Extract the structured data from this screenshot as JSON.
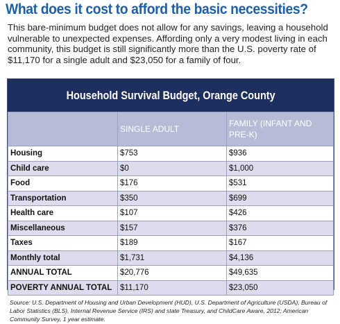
{
  "header": {
    "title": "What does it cost to afford the basic necessities?",
    "intro": "This bare-minimum budget does not allow for any savings, leaving a household vulnerable to unexpected expenses. Affording only a very modest living in each community, this budget is still significantly more than the U.S. poverty rate of $11,170 for a single adult and $23,050 for a family of four."
  },
  "table": {
    "title": "Household Survival Budget, Orange County",
    "columns": [
      "SINGLE ADULT",
      "FAMILY (INFANT AND PRE-K)"
    ],
    "rows": [
      [
        "Housing",
        "$753",
        "$936"
      ],
      [
        "Child care",
        "$0",
        "$1,000"
      ],
      [
        "Food",
        "$176",
        "$531"
      ],
      [
        "Transportation",
        "$350",
        "$699"
      ],
      [
        "Health care",
        "$107",
        "$426"
      ],
      [
        "Miscellaneous",
        "$157",
        "$376"
      ],
      [
        "Taxes",
        "$189",
        "$167"
      ],
      [
        "Monthly total",
        "$1,731",
        "$4,136"
      ],
      [
        "ANNUAL TOTAL",
        "$20,776",
        "$49,635"
      ],
      [
        "POVERTY ANNUAL TOTAL",
        "$11,170",
        "$23,050"
      ]
    ]
  },
  "source": "Source: U.S. Department of Housing and Urban Development (HUD), U.S. Department of Agriculture (USDA), Bureau of Labor Statistics (BLS), Internal Revenue Service (IRS) and state Treasury, and ChildCare Aware, 2012; American Community Survey, 1 year estimate."
}
